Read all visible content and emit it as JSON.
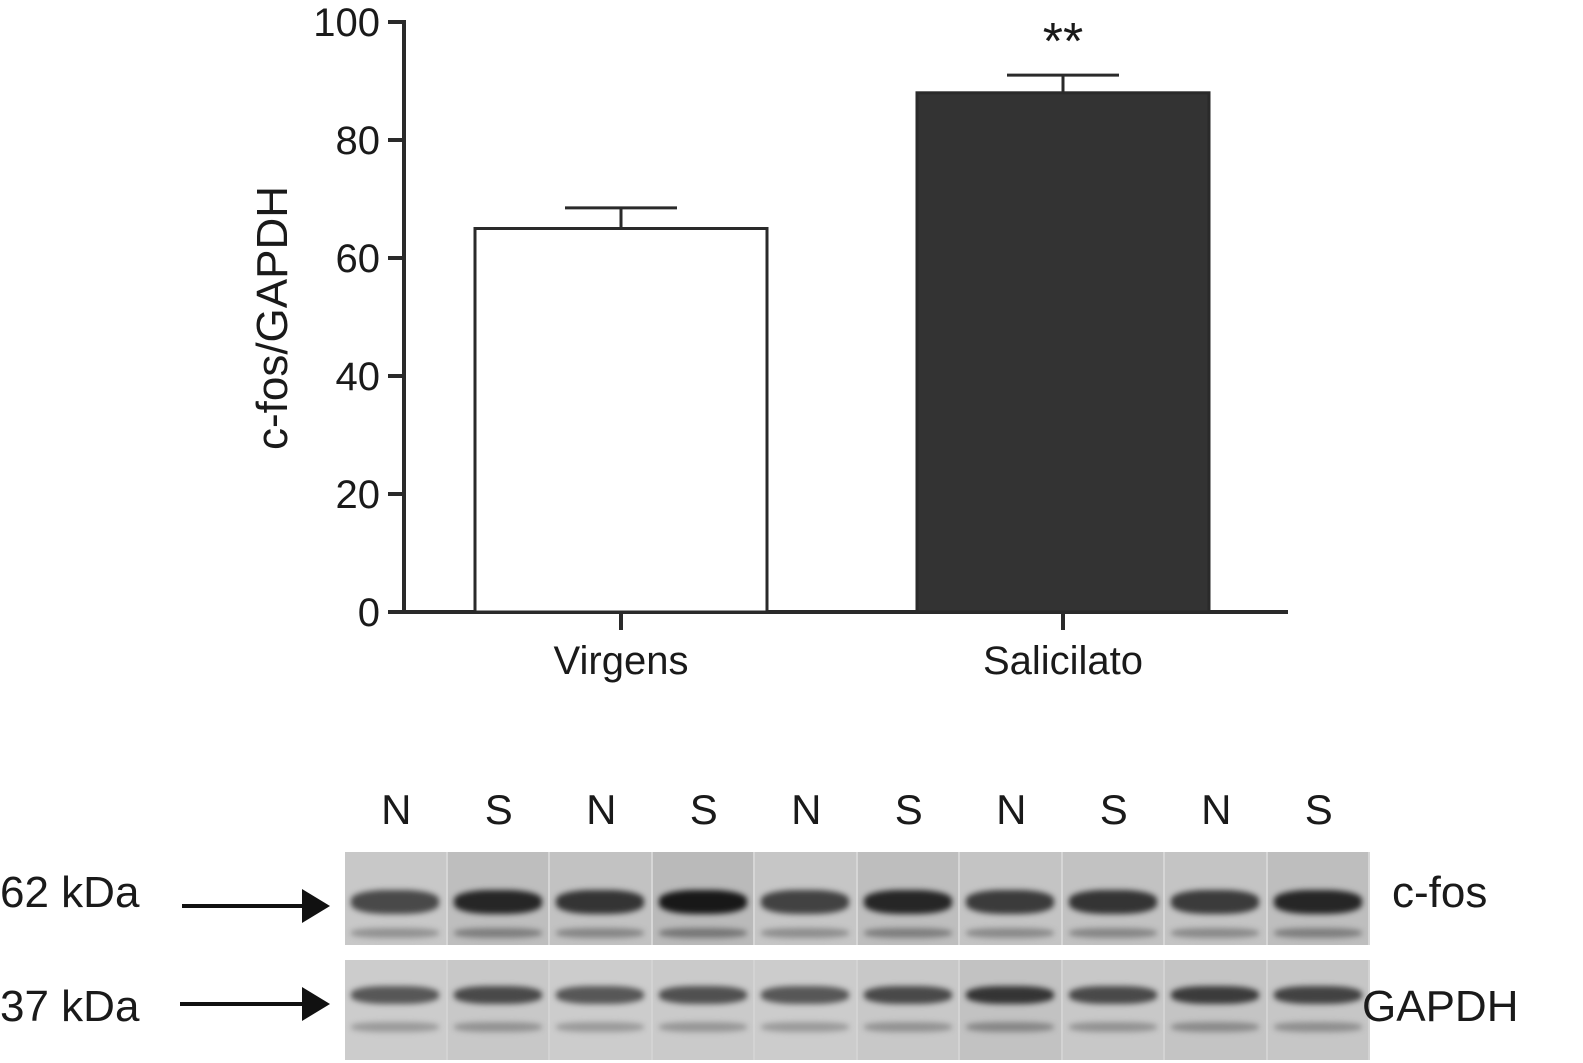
{
  "chart_data": {
    "type": "bar",
    "categories": [
      "Virgens",
      "Salicilato"
    ],
    "values": [
      65,
      88
    ],
    "errors": [
      3.5,
      3
    ],
    "bar_colors": [
      "#ffffff",
      "#333333"
    ],
    "ylabel": "c-fos/GAPDH",
    "ylim": [
      0,
      100
    ],
    "yticks": [
      "0",
      "20",
      "40",
      "60",
      "80",
      "100"
    ],
    "significance": [
      "",
      "**"
    ]
  },
  "blot": {
    "lanes": [
      "N",
      "S",
      "N",
      "S",
      "N",
      "S",
      "N",
      "S",
      "N",
      "S"
    ],
    "cfos": {
      "marker": "62 kDa",
      "label": "c-fos",
      "intensity": [
        0.55,
        0.8,
        0.7,
        0.9,
        0.6,
        0.8,
        0.65,
        0.7,
        0.65,
        0.8
      ]
    },
    "gapdh": {
      "marker": "37 kDa",
      "label": "GAPDH",
      "intensity": [
        0.45,
        0.55,
        0.45,
        0.5,
        0.45,
        0.55,
        0.7,
        0.55,
        0.65,
        0.6
      ]
    }
  }
}
